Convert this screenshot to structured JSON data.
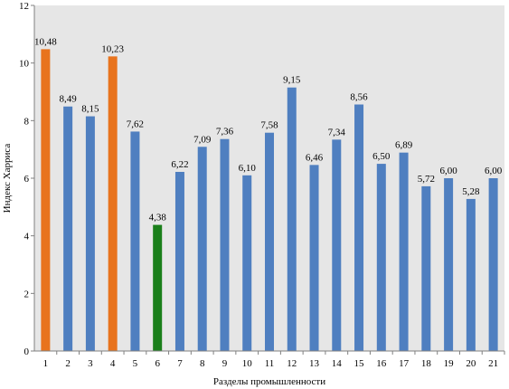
{
  "chart_data": {
    "type": "bar",
    "title": "",
    "xlabel": "Разделы промышленности",
    "ylabel": "Индекс Харриса",
    "ylim": [
      0,
      12
    ],
    "yticks": [
      "0",
      "2",
      "4",
      "6",
      "8",
      "10",
      "12"
    ],
    "grid": false,
    "plot_background": "#e6e6e6",
    "categories": [
      "1",
      "2",
      "3",
      "4",
      "5",
      "6",
      "7",
      "8",
      "9",
      "10",
      "11",
      "12",
      "13",
      "14",
      "15",
      "16",
      "17",
      "18",
      "19",
      "20",
      "21"
    ],
    "values": [
      10.48,
      8.49,
      8.15,
      10.23,
      7.62,
      4.38,
      6.22,
      7.09,
      7.36,
      6.1,
      7.58,
      9.15,
      6.46,
      7.34,
      8.56,
      6.5,
      6.89,
      5.72,
      6.0,
      5.28,
      6.0
    ],
    "value_labels": [
      "10,48",
      "8,49",
      "8,15",
      "10,23",
      "7,62",
      "4,38",
      "6,22",
      "7,09",
      "7,36",
      "6,10",
      "7,58",
      "9,15",
      "6,46",
      "7,34",
      "8,56",
      "6,50",
      "6,89",
      "5,72",
      "6,00",
      "5,28",
      "6,00"
    ],
    "colors": [
      "#e8731d",
      "#4f7fc0",
      "#4f7fc0",
      "#e8731d",
      "#4f7fc0",
      "#1a7f1a",
      "#4f7fc0",
      "#4f7fc0",
      "#4f7fc0",
      "#4f7fc0",
      "#4f7fc0",
      "#4f7fc0",
      "#4f7fc0",
      "#4f7fc0",
      "#4f7fc0",
      "#4f7fc0",
      "#4f7fc0",
      "#4f7fc0",
      "#4f7fc0",
      "#4f7fc0",
      "#4f7fc0"
    ]
  }
}
